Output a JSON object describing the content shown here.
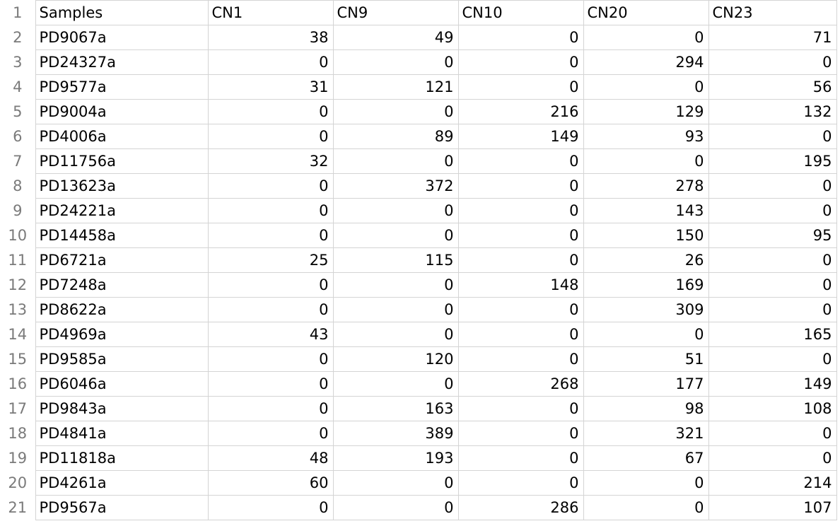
{
  "sheet": {
    "header": {
      "row_number": "1",
      "columns": [
        "Samples",
        "CN1",
        "CN9",
        "CN10",
        "CN20",
        "CN23"
      ]
    },
    "rows": [
      {
        "row_number": "2",
        "sample": "PD9067a",
        "values": [
          "38",
          "49",
          "0",
          "0",
          "71"
        ]
      },
      {
        "row_number": "3",
        "sample": "PD24327a",
        "values": [
          "0",
          "0",
          "0",
          "294",
          "0"
        ]
      },
      {
        "row_number": "4",
        "sample": "PD9577a",
        "values": [
          "31",
          "121",
          "0",
          "0",
          "56"
        ]
      },
      {
        "row_number": "5",
        "sample": "PD9004a",
        "values": [
          "0",
          "0",
          "216",
          "129",
          "132"
        ]
      },
      {
        "row_number": "6",
        "sample": "PD4006a",
        "values": [
          "0",
          "89",
          "149",
          "93",
          "0"
        ]
      },
      {
        "row_number": "7",
        "sample": "PD11756a",
        "values": [
          "32",
          "0",
          "0",
          "0",
          "195"
        ]
      },
      {
        "row_number": "8",
        "sample": "PD13623a",
        "values": [
          "0",
          "372",
          "0",
          "278",
          "0"
        ]
      },
      {
        "row_number": "9",
        "sample": "PD24221a",
        "values": [
          "0",
          "0",
          "0",
          "143",
          "0"
        ]
      },
      {
        "row_number": "10",
        "sample": "PD14458a",
        "values": [
          "0",
          "0",
          "0",
          "150",
          "95"
        ]
      },
      {
        "row_number": "11",
        "sample": "PD6721a",
        "values": [
          "25",
          "115",
          "0",
          "26",
          "0"
        ]
      },
      {
        "row_number": "12",
        "sample": "PD7248a",
        "values": [
          "0",
          "0",
          "148",
          "169",
          "0"
        ]
      },
      {
        "row_number": "13",
        "sample": "PD8622a",
        "values": [
          "0",
          "0",
          "0",
          "309",
          "0"
        ]
      },
      {
        "row_number": "14",
        "sample": "PD4969a",
        "values": [
          "43",
          "0",
          "0",
          "0",
          "165"
        ]
      },
      {
        "row_number": "15",
        "sample": "PD9585a",
        "values": [
          "0",
          "120",
          "0",
          "51",
          "0"
        ]
      },
      {
        "row_number": "16",
        "sample": "PD6046a",
        "values": [
          "0",
          "0",
          "268",
          "177",
          "149"
        ]
      },
      {
        "row_number": "17",
        "sample": "PD9843a",
        "values": [
          "0",
          "163",
          "0",
          "98",
          "108"
        ]
      },
      {
        "row_number": "18",
        "sample": "PD4841a",
        "values": [
          "0",
          "389",
          "0",
          "321",
          "0"
        ]
      },
      {
        "row_number": "19",
        "sample": "PD11818a",
        "values": [
          "48",
          "193",
          "0",
          "67",
          "0"
        ]
      },
      {
        "row_number": "20",
        "sample": "PD4261a",
        "values": [
          "60",
          "0",
          "0",
          "0",
          "214"
        ]
      },
      {
        "row_number": "21",
        "sample": "PD9567a",
        "values": [
          "0",
          "0",
          "286",
          "0",
          "107"
        ]
      }
    ]
  }
}
